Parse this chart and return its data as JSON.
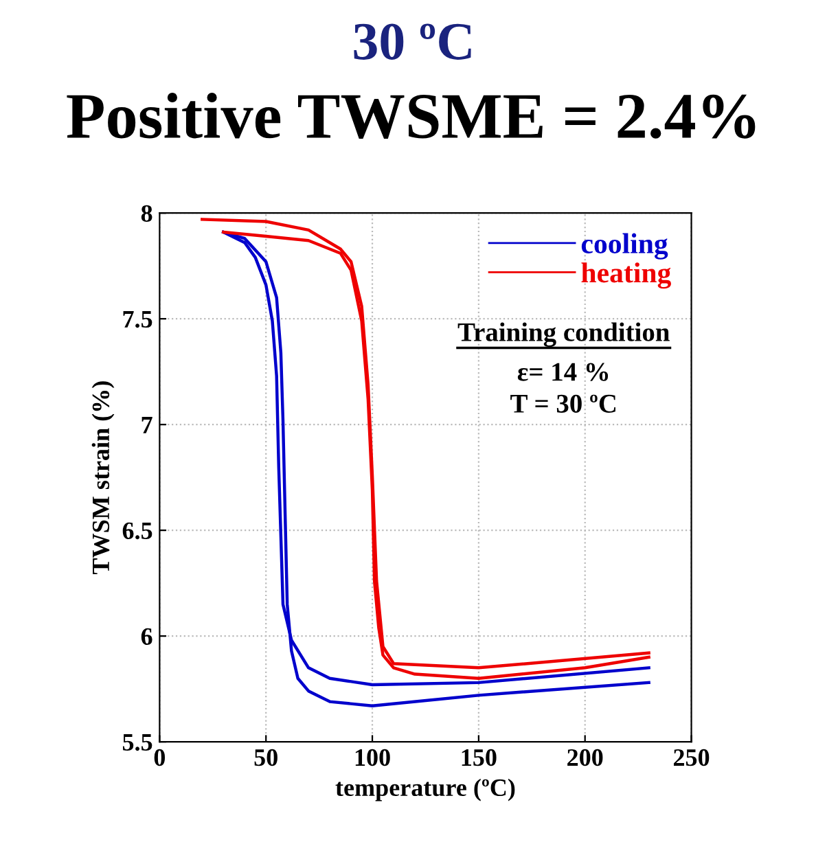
{
  "chart_data": {
    "type": "line",
    "title": "30 ºC",
    "subtitle": "Positive TWSME = 2.4%",
    "xlabel": "temperature (ºC)",
    "ylabel": "TWSM strain (%)",
    "xlim": [
      0,
      250
    ],
    "xticks": [
      0,
      50,
      100,
      150,
      200,
      250
    ],
    "ylim": [
      5.5,
      8
    ],
    "yticks": [
      5.5,
      6,
      6.5,
      7,
      7.5,
      8
    ],
    "grid": true,
    "legend": "top right",
    "line_style": "solid",
    "marker": "none",
    "annotations": [
      "Training condition",
      "ε= 14 %",
      "T = 30 ºC"
    ],
    "series": [
      {
        "name": "cooling",
        "color": "#0000cc",
        "x": [
          230,
          150,
          100,
          80,
          70,
          65,
          62,
          60,
          59,
          58,
          57,
          55,
          50,
          40,
          30
        ],
        "values": [
          5.78,
          5.72,
          5.67,
          5.69,
          5.74,
          5.8,
          5.93,
          6.15,
          6.58,
          7.02,
          7.34,
          7.6,
          7.77,
          7.88,
          7.91
        ]
      },
      {
        "color": "#0000cc",
        "x": [
          230,
          150,
          100,
          80,
          70,
          62,
          58,
          56,
          55,
          53,
          50,
          45,
          40,
          30
        ],
        "values": [
          5.85,
          5.78,
          5.77,
          5.8,
          5.85,
          5.98,
          6.15,
          6.8,
          7.23,
          7.49,
          7.66,
          7.79,
          7.86,
          7.91
        ]
      },
      {
        "name": "heating",
        "color": "#ee0000",
        "x": [
          30,
          50,
          70,
          85,
          90,
          95,
          98,
          100,
          101,
          103,
          105,
          110,
          120,
          150,
          200,
          230
        ],
        "values": [
          7.91,
          7.89,
          7.87,
          7.81,
          7.73,
          7.49,
          7.12,
          6.69,
          6.26,
          6.04,
          5.91,
          5.85,
          5.82,
          5.8,
          5.85,
          5.9
        ]
      },
      {
        "color": "#ee0000",
        "x": [
          20,
          50,
          70,
          85,
          90,
          95,
          98,
          100,
          102,
          105,
          110,
          150,
          230
        ],
        "values": [
          7.97,
          7.96,
          7.92,
          7.83,
          7.77,
          7.56,
          7.19,
          6.76,
          6.26,
          5.95,
          5.87,
          5.85,
          5.92
        ]
      }
    ]
  }
}
